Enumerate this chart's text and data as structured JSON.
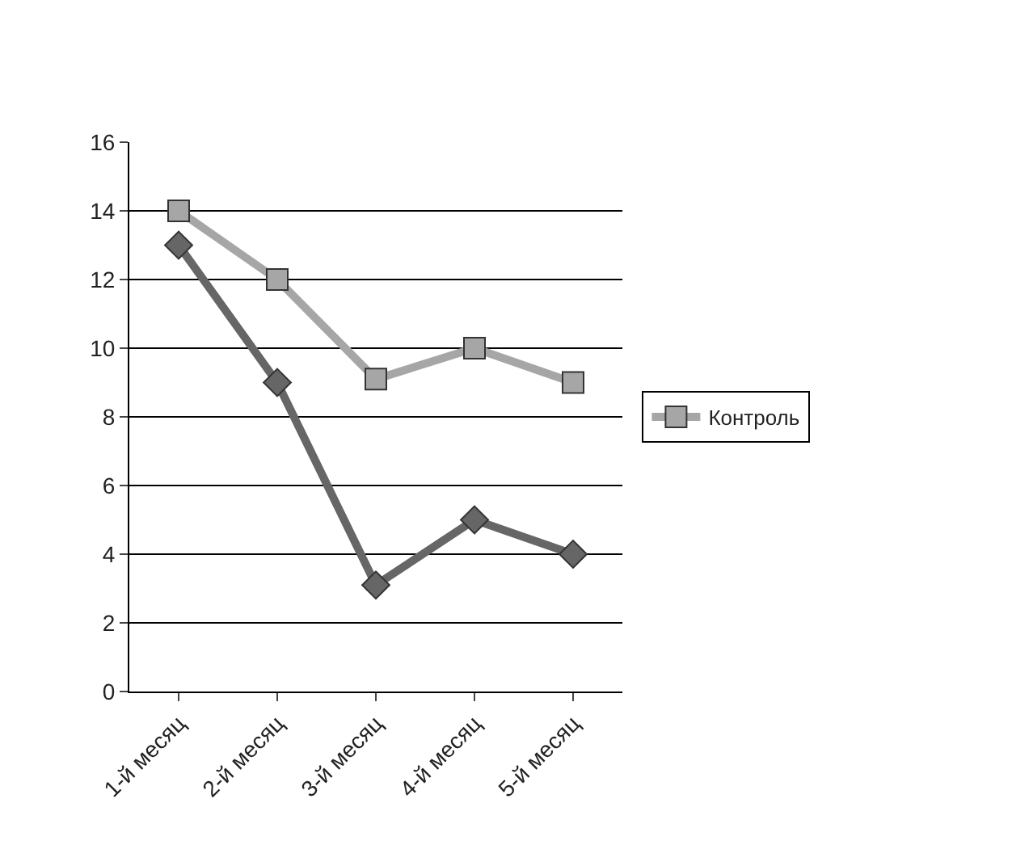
{
  "chart_data": {
    "type": "line",
    "categories": [
      "1-й месяц",
      "2-й месяц",
      "3-й месяц",
      "4-й месяц",
      "5-й месяц"
    ],
    "series": [
      {
        "color": "#666666",
        "marker": "diamond",
        "values": [
          13,
          9,
          3.1,
          5,
          4
        ]
      },
      {
        "name": "Контроль",
        "color": "#a6a6a6",
        "marker": "square",
        "values": [
          14,
          12,
          9.1,
          10,
          9
        ]
      }
    ],
    "ylim": [
      0,
      16
    ],
    "yticks": [
      0,
      2,
      4,
      6,
      8,
      10,
      12,
      14,
      16
    ],
    "grid": "y",
    "legend": "right"
  }
}
